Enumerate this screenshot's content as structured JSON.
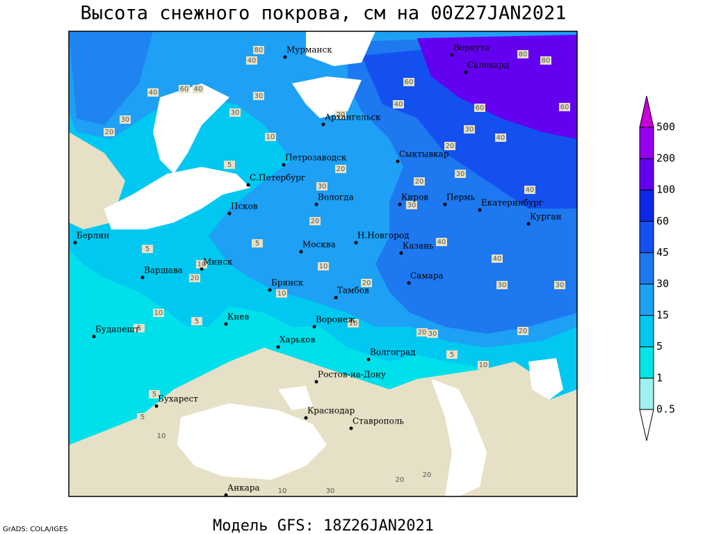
{
  "title": "Высота снежного покрова, см на 00Z27JAN2021",
  "footer": "Модель GFS: 18Z26JAN2021",
  "credit": "GrADS: COLA/IGES",
  "colorbar": {
    "levels": [
      0.5,
      1,
      5,
      15,
      30,
      45,
      60,
      100,
      200,
      500
    ],
    "colors": [
      "#ffffff",
      "#a0f0f0",
      "#00e6e6",
      "#00c8f0",
      "#1ea0f5",
      "#1e78f0",
      "#1450f0",
      "#0a28e6",
      "#6400f0",
      "#9600f0",
      "#c800dc"
    ]
  },
  "cities": [
    "Мурманск",
    "Воркута",
    "Салехард",
    "Архангельск",
    "Петрозаводск",
    "Сыктывкар",
    "С.Петербург",
    "Вологда",
    "Киров",
    "Пермь",
    "Екатеринбург",
    "Курган",
    "Псков",
    "Берлин",
    "Н.Новгород",
    "Москва",
    "Казань",
    "Минск",
    "Варшава",
    "Самара",
    "Брянск",
    "Тамбов",
    "Киев",
    "Воронеж",
    "Будапешт",
    "Харьков",
    "Волгоград",
    "Ростов-на-Дону",
    "Бухарест",
    "Краснодар",
    "Ставрополь",
    "Анкара"
  ],
  "contour_labels": [
    80,
    40,
    60,
    40,
    30,
    20,
    40,
    30,
    30,
    10,
    5,
    20,
    40,
    60,
    80,
    80,
    60,
    60,
    30,
    40,
    20,
    20,
    30,
    20,
    30,
    40,
    30,
    20,
    5,
    10,
    20,
    5,
    10,
    20,
    10,
    40,
    40,
    30,
    30,
    20,
    20,
    30,
    10,
    5,
    10,
    5,
    10,
    5,
    5,
    5,
    10,
    20,
    10,
    30,
    20
  ]
}
